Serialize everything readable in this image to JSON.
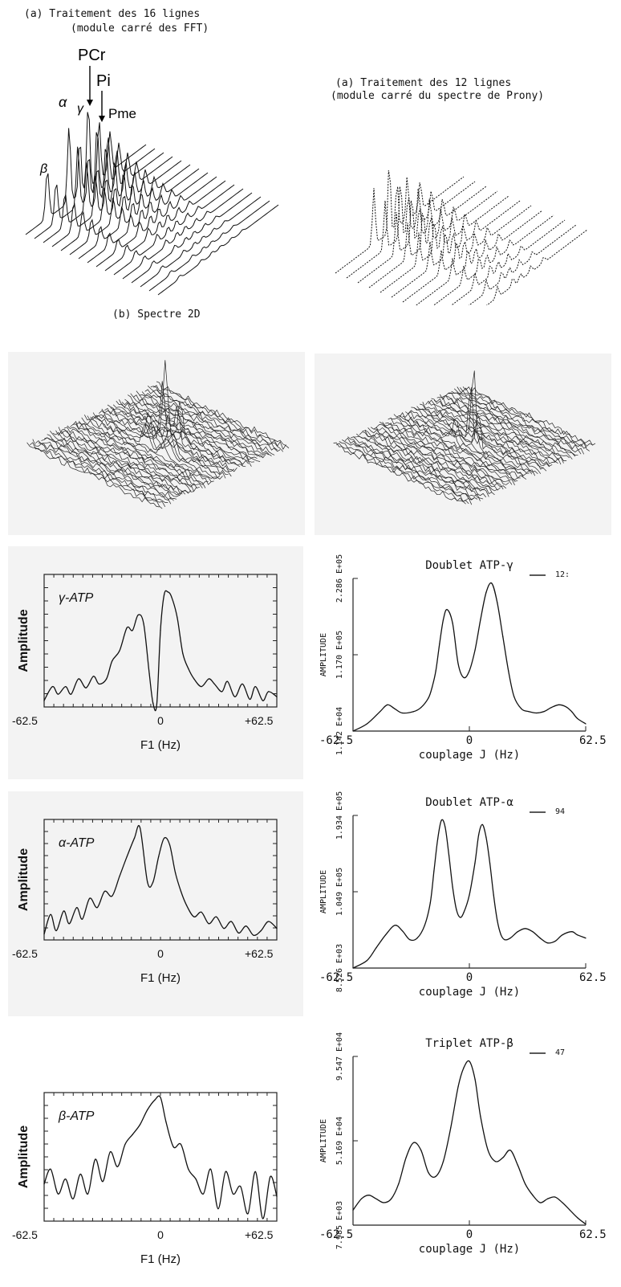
{
  "figure": {
    "left_stack": {
      "title_line1": "(a) Traitement des 16 lignes",
      "title_line2": "(module carré des FFT)",
      "peak_labels": [
        "PCr",
        "Pi",
        "Pme",
        "α",
        "γ",
        "β"
      ]
    },
    "right_stack": {
      "title_line1": "(a) Traitement des 12 lignes",
      "title_line2": "(module carré du spectre de Prony)"
    },
    "spectre_2d_label": "(b) Spectre 2D"
  },
  "chart_data": [
    {
      "id": "fft-gamma",
      "type": "line",
      "annotation": "γ-ATP",
      "xlabel": "F1 (Hz)",
      "ylabel": "Amplitude",
      "xticks": [
        "-62.5",
        "0",
        "+62.5"
      ],
      "xlim": [
        -62.5,
        62.5
      ],
      "ylim": [
        0,
        1
      ],
      "x": [
        -62.5,
        -58,
        -55,
        -51,
        -48,
        -44,
        -40,
        -36,
        -33,
        -29,
        -26,
        -22,
        -18,
        -15,
        -12,
        -9,
        -6,
        -4,
        -2,
        0,
        2,
        4,
        6,
        9,
        12,
        15,
        18,
        22,
        26,
        29,
        33,
        36,
        40,
        44,
        48,
        51,
        55,
        58,
        62.5
      ],
      "y": [
        0.05,
        0.16,
        0.1,
        0.16,
        0.1,
        0.22,
        0.15,
        0.24,
        0.18,
        0.22,
        0.36,
        0.44,
        0.62,
        0.6,
        0.72,
        0.65,
        0.26,
        0.03,
        0.02,
        0.6,
        0.88,
        0.9,
        0.86,
        0.7,
        0.42,
        0.3,
        0.22,
        0.16,
        0.22,
        0.18,
        0.12,
        0.2,
        0.08,
        0.18,
        0.06,
        0.16,
        0.05,
        0.12,
        0.08
      ]
    },
    {
      "id": "fft-alpha",
      "type": "line",
      "annotation": "α-ATP",
      "xlabel": "F1 (Hz)",
      "ylabel": "Amplitude",
      "xticks": [
        "-62.5",
        "0",
        "+62.5"
      ],
      "xlim": [
        -62.5,
        62.5
      ],
      "ylim": [
        0,
        1
      ],
      "x": [
        -62.5,
        -59,
        -56,
        -52,
        -49,
        -45,
        -42,
        -38,
        -34,
        -30,
        -26,
        -22,
        -18,
        -14,
        -11,
        -7,
        -4,
        -1,
        2,
        5,
        8,
        11,
        14,
        18,
        22,
        26,
        30,
        34,
        38,
        42,
        46,
        50,
        54,
        58,
        62.5
      ],
      "y": [
        0.05,
        0.22,
        0.08,
        0.25,
        0.14,
        0.28,
        0.18,
        0.36,
        0.28,
        0.42,
        0.38,
        0.55,
        0.72,
        0.88,
        0.97,
        0.5,
        0.5,
        0.72,
        0.88,
        0.82,
        0.58,
        0.42,
        0.3,
        0.2,
        0.24,
        0.14,
        0.2,
        0.1,
        0.16,
        0.06,
        0.12,
        0.04,
        0.08,
        0.16,
        0.1
      ]
    },
    {
      "id": "fft-beta",
      "type": "line",
      "annotation": "β-ATP",
      "xlabel": "F1 (Hz)",
      "ylabel": "Amplitude",
      "xticks": [
        "-62.5",
        "0",
        "+62.5"
      ],
      "xlim": [
        -62.5,
        62.5
      ],
      "ylim": [
        0,
        1
      ],
      "x": [
        -62.5,
        -59,
        -55,
        -51,
        -47,
        -43,
        -39,
        -35,
        -31,
        -27,
        -23,
        -19,
        -15,
        -11,
        -7,
        -3,
        0,
        3,
        7,
        11,
        15,
        19,
        23,
        27,
        31,
        35,
        39,
        43,
        47,
        51,
        55,
        59,
        62.5
      ],
      "y": [
        0.3,
        0.42,
        0.22,
        0.34,
        0.18,
        0.38,
        0.22,
        0.5,
        0.32,
        0.56,
        0.44,
        0.62,
        0.7,
        0.78,
        0.9,
        0.98,
        1.0,
        0.8,
        0.6,
        0.62,
        0.42,
        0.34,
        0.22,
        0.42,
        0.1,
        0.4,
        0.22,
        0.28,
        0.06,
        0.4,
        0.02,
        0.36,
        0.2
      ]
    },
    {
      "id": "prony-gamma",
      "type": "line",
      "title": "Doublet ATP-γ",
      "xlabel": "couplage J (Hz)",
      "ylabel": "AMPLITUDE",
      "xticks": [
        "-62.5",
        "0",
        "62.5"
      ],
      "yticks": [
        "1.142 E+04",
        "1.170 E+05",
        "2.286 E+05"
      ],
      "legend_fragment": "12:",
      "xlim": [
        -62.5,
        62.5
      ],
      "ylim": [
        11420,
        228600
      ],
      "x": [
        -62.5,
        -55,
        -48,
        -44,
        -40,
        -36,
        -30,
        -26,
        -22,
        -20,
        -18,
        -16,
        -14,
        -12,
        -9,
        -6,
        -3,
        0,
        3,
        6,
        9,
        12,
        15,
        18,
        21,
        24,
        28,
        32,
        36,
        40,
        44,
        48,
        52,
        55,
        58,
        62.5
      ],
      "y": [
        11420,
        22000,
        40000,
        50000,
        44000,
        38000,
        40000,
        46000,
        60000,
        76000,
        100000,
        140000,
        175000,
        190000,
        170000,
        110000,
        90000,
        100000,
        130000,
        175000,
        215000,
        228600,
        200000,
        150000,
        100000,
        62000,
        44000,
        40000,
        38000,
        40000,
        46000,
        50000,
        47000,
        40000,
        30000,
        22000
      ]
    },
    {
      "id": "prony-alpha",
      "type": "line",
      "title": "Doublet ATP-α",
      "xlabel": "couplage J (Hz)",
      "ylabel": "AMPLITUDE",
      "xticks": [
        "-62.5",
        "0",
        "62.5"
      ],
      "yticks": [
        "8.526 E+03",
        "1.049 E+05",
        "1.934 E+05"
      ],
      "legend_fragment": "94",
      "xlim": [
        -62.5,
        62.5
      ],
      "ylim": [
        8526,
        193400
      ],
      "x": [
        -62.5,
        -55,
        -50,
        -45,
        -40,
        -36,
        -32,
        -28,
        -24,
        -21,
        -19,
        -17,
        -15,
        -13,
        -11,
        -9,
        -7,
        -5,
        -3,
        0,
        3,
        5,
        7,
        9,
        11,
        13,
        15,
        17,
        19,
        22,
        26,
        30,
        34,
        38,
        42,
        46,
        50,
        55,
        58,
        62.5
      ],
      "y": [
        8526,
        18000,
        34000,
        50000,
        62000,
        55000,
        44000,
        46000,
        62000,
        90000,
        130000,
        170000,
        193400,
        185000,
        150000,
        110000,
        82000,
        72000,
        78000,
        100000,
        140000,
        175000,
        188000,
        172000,
        140000,
        100000,
        68000,
        50000,
        44000,
        46000,
        54000,
        58000,
        54000,
        46000,
        40000,
        42000,
        50000,
        54000,
        50000,
        46000
      ]
    },
    {
      "id": "prony-beta",
      "type": "line",
      "title": "Triplet ATP-β",
      "xlabel": "couplage J (Hz)",
      "ylabel": "AMPLITUDE",
      "xticks": [
        "-62.5",
        "0",
        "62.5"
      ],
      "yticks": [
        "7.985 E+03",
        "5.169 E+04",
        "9.547 E+04"
      ],
      "legend_fragment": "47",
      "xlim": [
        -62.5,
        62.5
      ],
      "ylim": [
        7985,
        95470
      ],
      "x": [
        -62.5,
        -58,
        -54,
        -50,
        -46,
        -42,
        -38,
        -34,
        -30,
        -26,
        -22,
        -18,
        -14,
        -10,
        -6,
        -3,
        0,
        3,
        6,
        10,
        14,
        18,
        22,
        26,
        30,
        34,
        38,
        42,
        46,
        50,
        54,
        58,
        62.5
      ],
      "y": [
        16000,
        22000,
        24000,
        22000,
        20000,
        22000,
        30000,
        44000,
        52000,
        48000,
        36000,
        34000,
        42000,
        60000,
        82000,
        92000,
        95470,
        86000,
        66000,
        48000,
        42000,
        44000,
        48000,
        40000,
        30000,
        24000,
        20000,
        22000,
        23000,
        20000,
        16000,
        12000,
        8500
      ]
    }
  ]
}
